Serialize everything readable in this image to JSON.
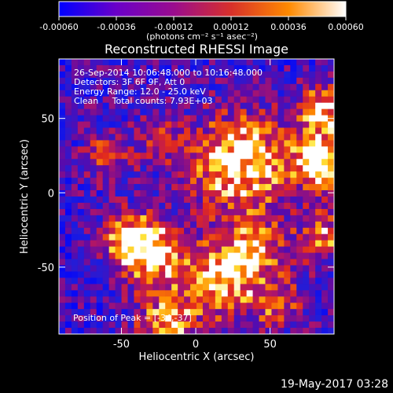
{
  "chart_data": {
    "type": "heatmap",
    "title": "Reconstructed RHESSI Image",
    "xlabel": "Heliocentric X (arcsec)",
    "ylabel": "Heliocentric Y (arcsec)",
    "xlim": [
      -92,
      93
    ],
    "ylim": [
      -95,
      90
    ],
    "xticks": [
      -50,
      0,
      50
    ],
    "yticks": [
      -50,
      0,
      50
    ],
    "annotations": [
      "26-Sep-2014 10:06:48.000 to 10:16:48.000",
      "Detectors: 3F 6F 9F, Att 0",
      "Energy Range: 12.0 - 25.0 keV",
      "Clean     Total counts: 7.93E+03"
    ],
    "peak_label": "Position of Peak = [-34,-37]",
    "colorbar": {
      "ticks": [
        "-0.00060",
        "-0.00036",
        "-0.00012",
        "0.00012",
        "0.00036",
        "0.00060"
      ],
      "units": "(photons cm⁻² s⁻¹ asec⁻²)",
      "range": [
        -0.0006,
        0.0006
      ],
      "colors": [
        "#0000ff",
        "#6a00c8",
        "#9a0c8e",
        "#d8302a",
        "#ff8a00",
        "#ffffff"
      ]
    },
    "grid": false
  },
  "footer": {
    "timestamp": "19-May-2017 03:28"
  }
}
